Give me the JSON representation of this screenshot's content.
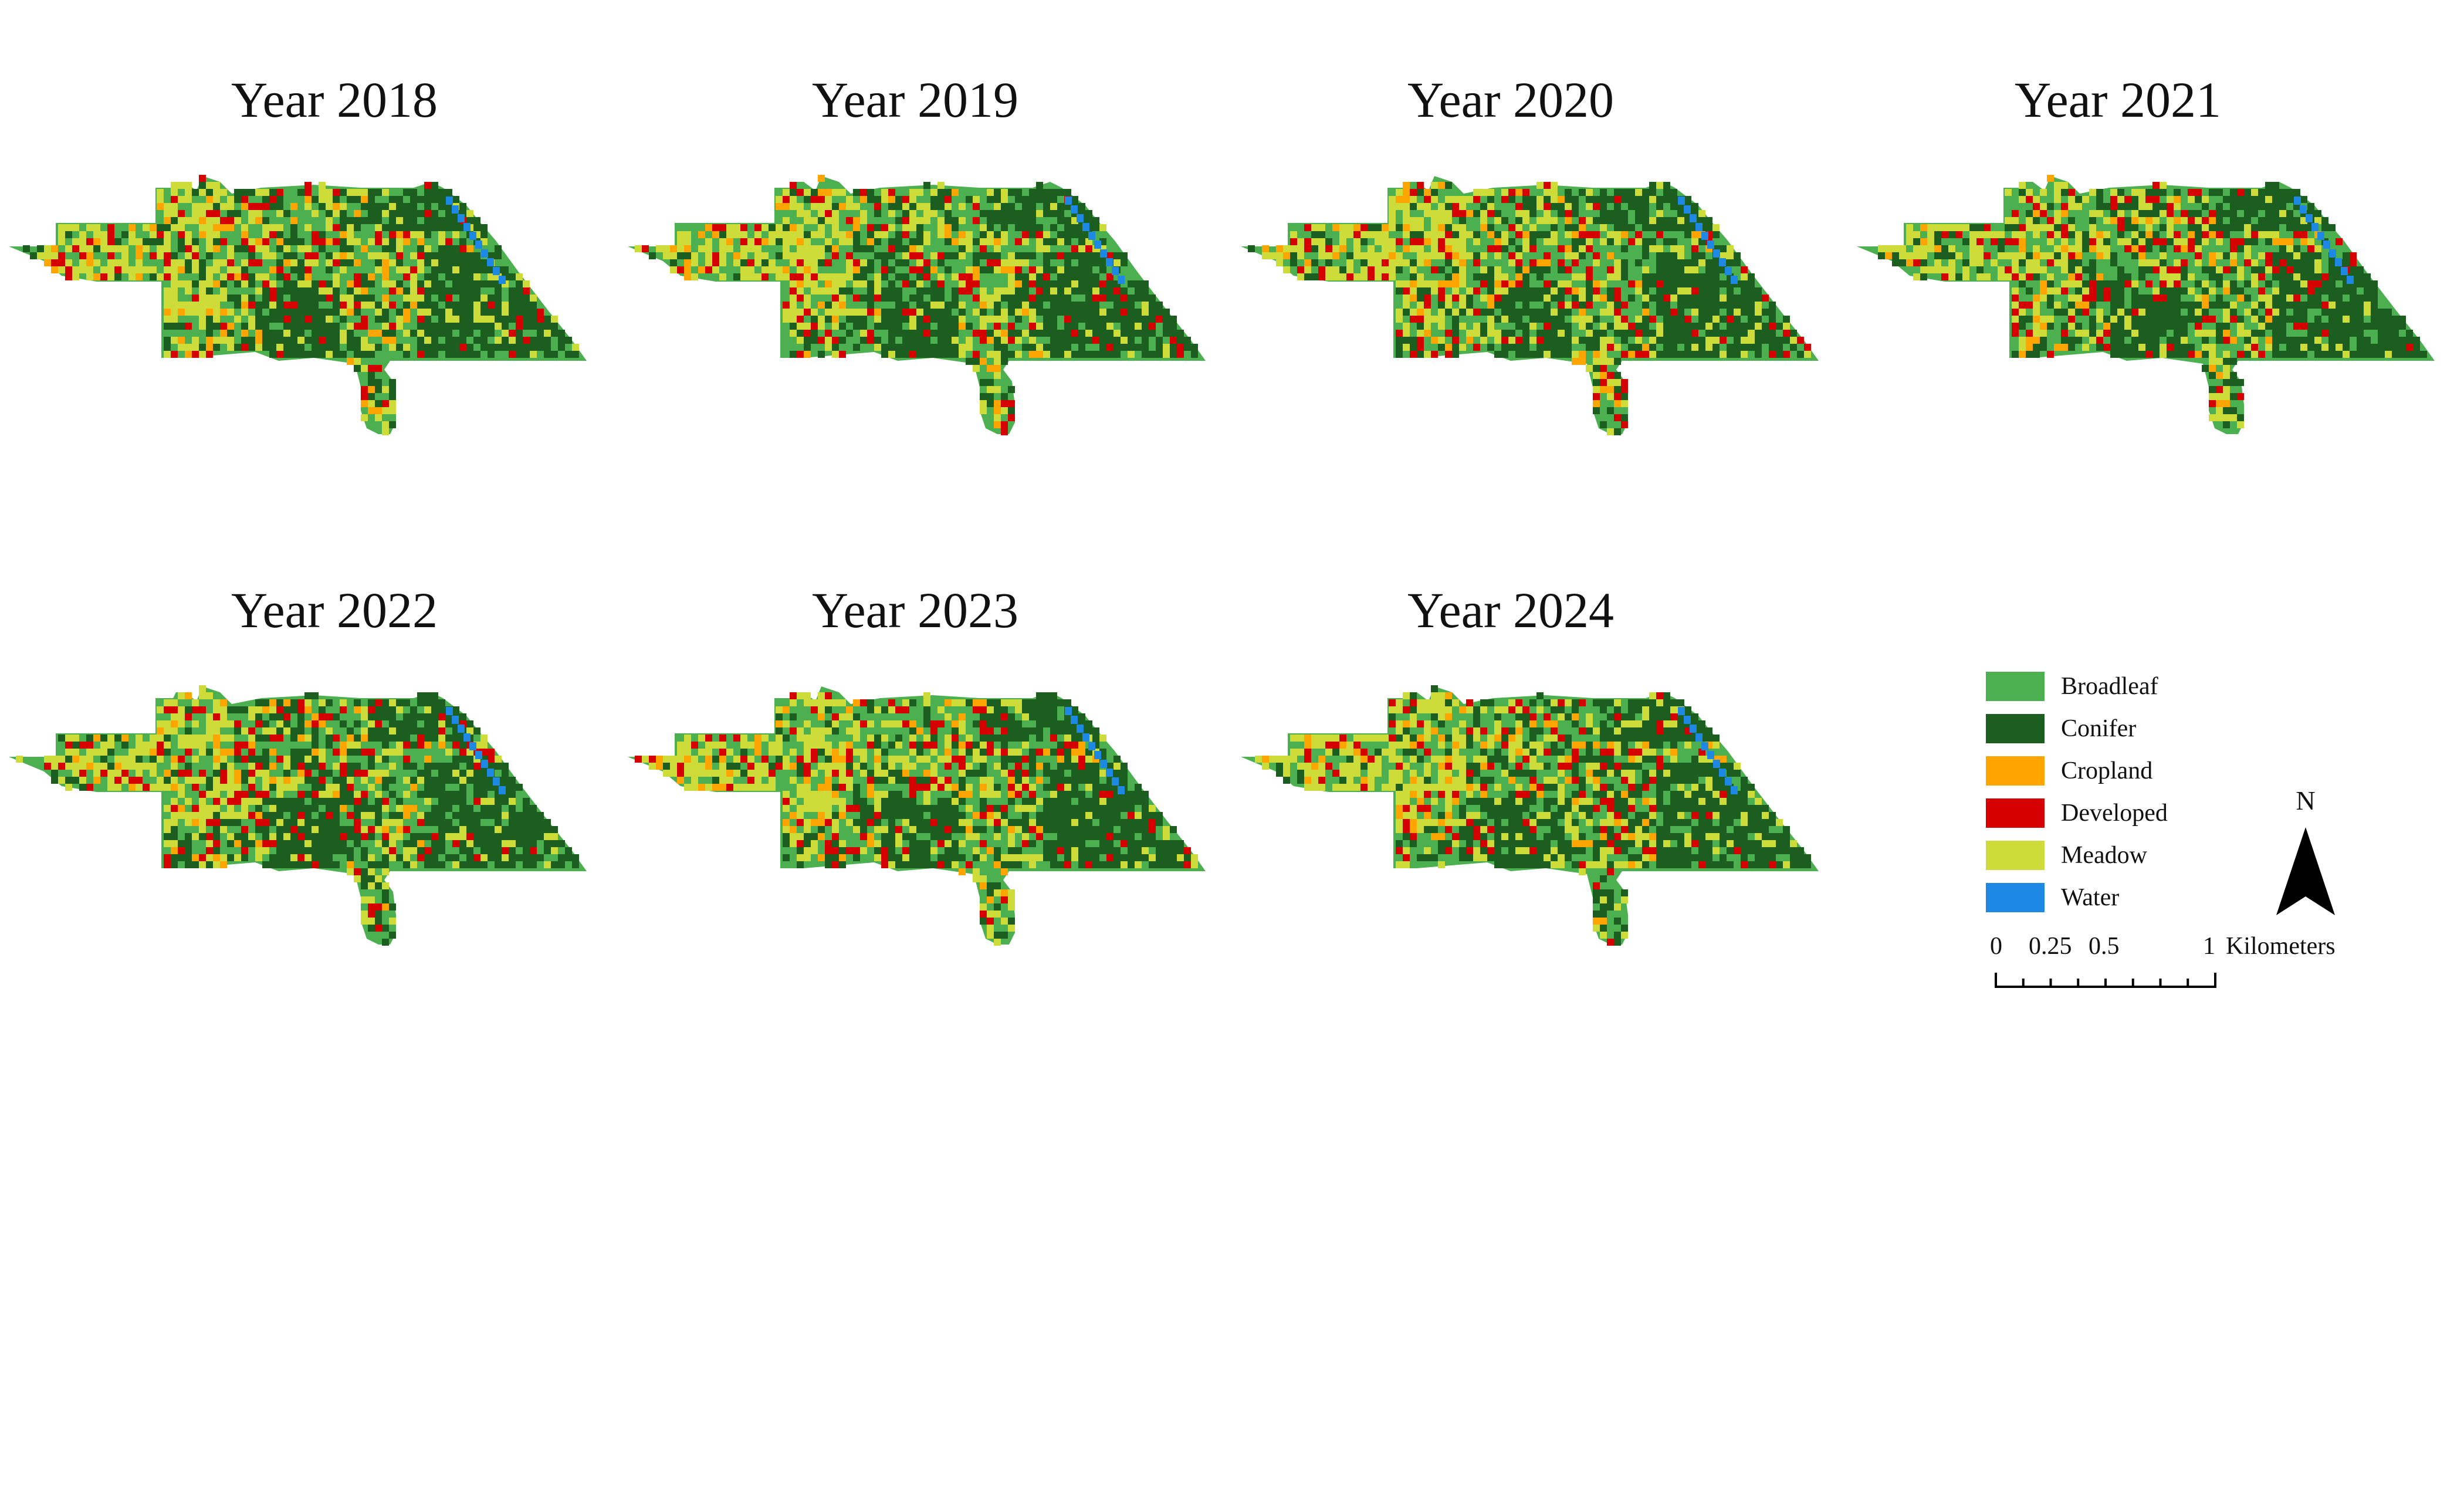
{
  "panels": [
    {
      "title": "Year 2018"
    },
    {
      "title": "Year 2019"
    },
    {
      "title": "Year 2020"
    },
    {
      "title": "Year 2021"
    },
    {
      "title": "Year 2022"
    },
    {
      "title": "Year 2023"
    },
    {
      "title": "Year 2024"
    }
  ],
  "legend": {
    "items": [
      {
        "label": "Broadleaf",
        "color": "#4caf50"
      },
      {
        "label": "Conifer",
        "color": "#1b5e20"
      },
      {
        "label": "Cropland",
        "color": "#ffa500"
      },
      {
        "label": "Developed",
        "color": "#d50000"
      },
      {
        "label": "Meadow",
        "color": "#cddc39"
      },
      {
        "label": "Water",
        "color": "#1e88e5"
      }
    ]
  },
  "north_arrow": {
    "label": "N"
  },
  "scale_bar": {
    "tick_labels": [
      "0",
      "0.25",
      "0.5",
      "1"
    ],
    "unit": "Kilometers"
  }
}
